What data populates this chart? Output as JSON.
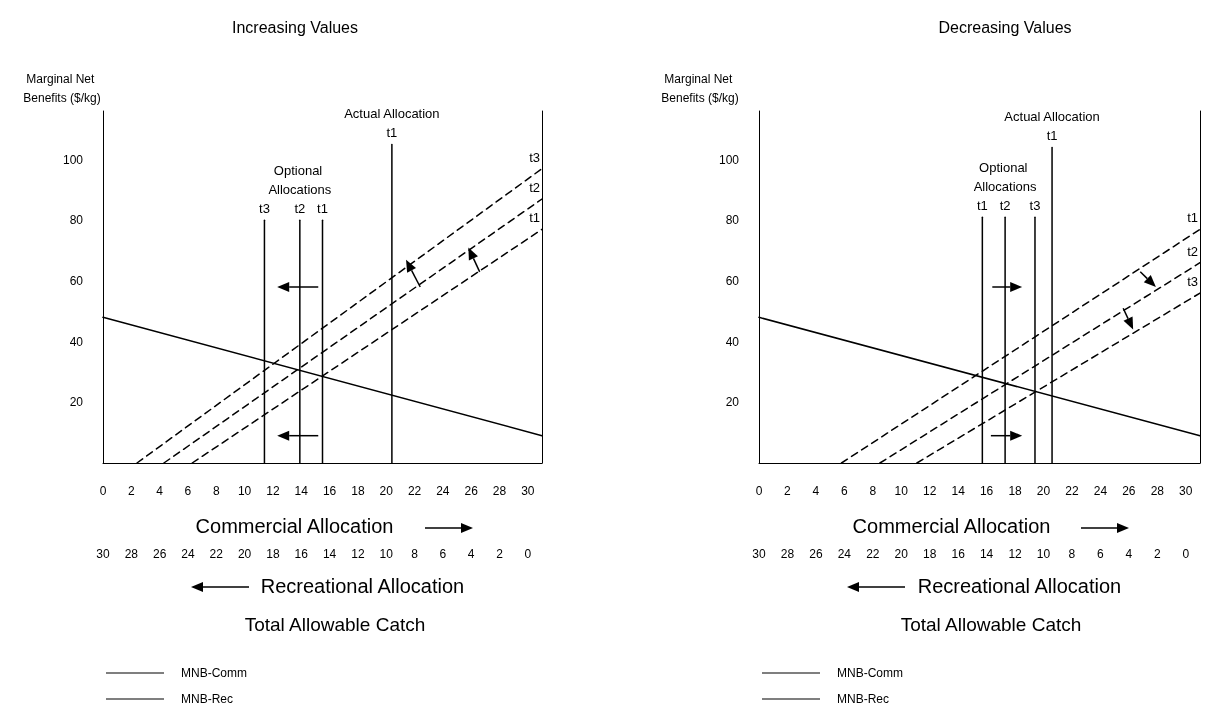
{
  "chart_data": [
    {
      "type": "line",
      "title": "Increasing Values",
      "xlabel": "Commercial Allocation",
      "x2label": "Recreational Allocation",
      "ylabel": "Marginal Net Benefits ($/kg)",
      "xlim": [
        0,
        31
      ],
      "xticks": [
        0,
        2,
        4,
        6,
        8,
        10,
        12,
        14,
        16,
        18,
        20,
        22,
        24,
        26,
        28,
        30
      ],
      "x2lim": [
        30,
        -1
      ],
      "x2ticks": [
        30,
        28,
        26,
        24,
        22,
        20,
        18,
        16,
        14,
        12,
        10,
        8,
        6,
        4,
        2,
        0
      ],
      "ylim": [
        0,
        116
      ],
      "yticks": [
        20,
        40,
        60,
        80,
        100
      ],
      "grid": false,
      "legend": "bottom left",
      "marker": "none",
      "series": [
        {
          "name": "MNB-Comm",
          "color": "#000000",
          "line_style": "dashed",
          "x": [
            6.3,
            31
          ],
          "values": [
            0,
            77
          ]
        },
        {
          "color": "#000000",
          "line_style": "dashed",
          "x": [
            4.3,
            31
          ],
          "values": [
            0,
            87
          ]
        },
        {
          "color": "#000000",
          "line_style": "dashed",
          "x": [
            2.4,
            31
          ],
          "values": [
            0,
            97
          ]
        },
        {
          "name": "MNB-Rec",
          "color": "#000000",
          "line_style": "solid",
          "x": [
            0,
            31
          ],
          "values": [
            48,
            9
          ]
        },
        {
          "color": "#000000",
          "line_style": "solid",
          "x": [
            11.4,
            11.4
          ],
          "values": [
            0,
            80
          ]
        },
        {
          "color": "#000000",
          "line_style": "solid",
          "x": [
            13.9,
            13.9
          ],
          "values": [
            0,
            80
          ]
        },
        {
          "color": "#000000",
          "line_style": "solid",
          "x": [
            15.5,
            15.5
          ],
          "values": [
            0,
            80
          ]
        },
        {
          "color": "#000000",
          "line_style": "solid",
          "x": [
            20.4,
            20.4
          ],
          "values": [
            0,
            105
          ]
        }
      ],
      "annotations": [
        {
          "text": "t1",
          "x": 20.4,
          "y": 105
        },
        {
          "text": "Actual Allocation",
          "x": 20.4,
          "y": 105
        },
        {
          "text": "t3",
          "x": 11.4,
          "y": 80
        },
        {
          "text": "t2",
          "x": 13.9,
          "y": 80
        },
        {
          "text": "Optional Allocations",
          "x": 13.9,
          "y": 80
        },
        {
          "text": "t1",
          "x": 15.5,
          "y": 80
        },
        {
          "text": "t3",
          "x": 31,
          "y": 97
        },
        {
          "text": "t2",
          "x": 31,
          "y": 87
        },
        {
          "text": "t1",
          "x": 31,
          "y": 77
        },
        "Total Allowable Catch"
      ]
    },
    {
      "type": "line",
      "title": "Decreasing Values",
      "xlabel": "Commercial Allocation",
      "x2label": "Recreational Allocation",
      "ylabel": "Marginal Net Benefits ($/kg)",
      "xlim": [
        0,
        31
      ],
      "xticks": [
        0,
        2,
        4,
        6,
        8,
        10,
        12,
        14,
        16,
        18,
        20,
        22,
        24,
        26,
        28,
        30
      ],
      "x2lim": [
        30,
        -1
      ],
      "x2ticks": [
        30,
        28,
        26,
        24,
        22,
        20,
        18,
        16,
        14,
        12,
        10,
        8,
        6,
        4,
        2,
        0
      ],
      "ylim": [
        0,
        116
      ],
      "yticks": [
        20,
        40,
        60,
        80,
        100
      ],
      "grid": false,
      "legend": "bottom left",
      "marker": "none",
      "series": [
        {
          "name": "MNB-Comm",
          "color": "#000000",
          "line_style": "dashed",
          "x": [
            5.8,
            31
          ],
          "values": [
            0,
            77
          ]
        },
        {
          "color": "#000000",
          "line_style": "dashed",
          "x": [
            8.5,
            31
          ],
          "values": [
            0,
            66
          ]
        },
        {
          "color": "#000000",
          "line_style": "dashed",
          "x": [
            11.1,
            31
          ],
          "values": [
            0,
            56
          ]
        },
        {
          "name": "MNB-Rec",
          "color": "#000000",
          "line_style": "solid",
          "x": [
            0,
            31
          ],
          "values": [
            48,
            9
          ]
        },
        {
          "color": "#000000",
          "line_style": "solid",
          "x": [
            15.7,
            15.7
          ],
          "values": [
            0,
            81
          ]
        },
        {
          "color": "#000000",
          "line_style": "solid",
          "x": [
            17.3,
            17.3
          ],
          "values": [
            0,
            81
          ]
        },
        {
          "color": "#000000",
          "line_style": "solid",
          "x": [
            19.4,
            19.4
          ],
          "values": [
            0,
            81
          ]
        },
        {
          "color": "#000000",
          "line_style": "solid",
          "x": [
            20.6,
            20.6
          ],
          "values": [
            0,
            104
          ]
        }
      ],
      "annotations": [
        {
          "text": "t1",
          "x": 20.6,
          "y": 104
        },
        {
          "text": "Actual Allocation",
          "x": 20.6,
          "y": 104
        },
        {
          "text": "t1",
          "x": 15.7,
          "y": 81
        },
        {
          "text": "t2",
          "x": 17.3,
          "y": 81
        },
        {
          "text": "Optional Allocations",
          "x": 17.3,
          "y": 81
        },
        {
          "text": "t3",
          "x": 19.4,
          "y": 81
        },
        {
          "text": "t1",
          "x": 31,
          "y": 77
        },
        {
          "text": "t2",
          "x": 31,
          "y": 66
        },
        {
          "text": "t3",
          "x": 31,
          "y": 56
        },
        "Total Allowable Catch"
      ]
    }
  ]
}
